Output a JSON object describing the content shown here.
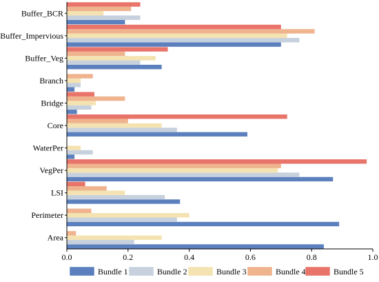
{
  "chart_data": {
    "type": "bar",
    "orientation": "horizontal",
    "title": "",
    "xlabel": "",
    "ylabel": "",
    "xlim": [
      0,
      1.0
    ],
    "x_ticks": [
      "0.0",
      "0.2",
      "0.4",
      "0.6",
      "0.8",
      "1.0"
    ],
    "grid": false,
    "legend_position": "bottom",
    "categories": [
      "Buffer_BCR",
      "Buffer_Impervious",
      "Buffer_Veg",
      "Branch",
      "Bridge",
      "Core",
      "WaterPer",
      "VegPer",
      "LSI",
      "Perimeter",
      "Area"
    ],
    "series": [
      {
        "name": "Bundle 1",
        "color": "#5b80bd",
        "values": [
          0.19,
          0.7,
          0.31,
          0.025,
          0.033,
          0.59,
          0.025,
          0.87,
          0.37,
          0.89,
          0.84
        ]
      },
      {
        "name": "Bundle 2",
        "color": "#c7d1de",
        "values": [
          0.24,
          0.76,
          0.24,
          0.045,
          0.08,
          0.36,
          0.085,
          0.76,
          0.32,
          0.36,
          0.22
        ]
      },
      {
        "name": "Bundle 3",
        "color": "#f4e3b1",
        "values": [
          0.12,
          0.72,
          0.29,
          0.045,
          0.095,
          0.31,
          0.045,
          0.69,
          0.19,
          0.4,
          0.31
        ]
      },
      {
        "name": "Bundle 4",
        "color": "#efb38e",
        "values": [
          0.21,
          0.81,
          0.19,
          0.085,
          0.19,
          0.2,
          0.0,
          0.7,
          0.13,
          0.08,
          0.03
        ]
      },
      {
        "name": "Bundle 5",
        "color": "#e8746a",
        "values": [
          0.24,
          0.7,
          0.33,
          0.0,
          0.09,
          0.72,
          0.0,
          0.98,
          0.06,
          0.0,
          0.0
        ]
      }
    ]
  }
}
